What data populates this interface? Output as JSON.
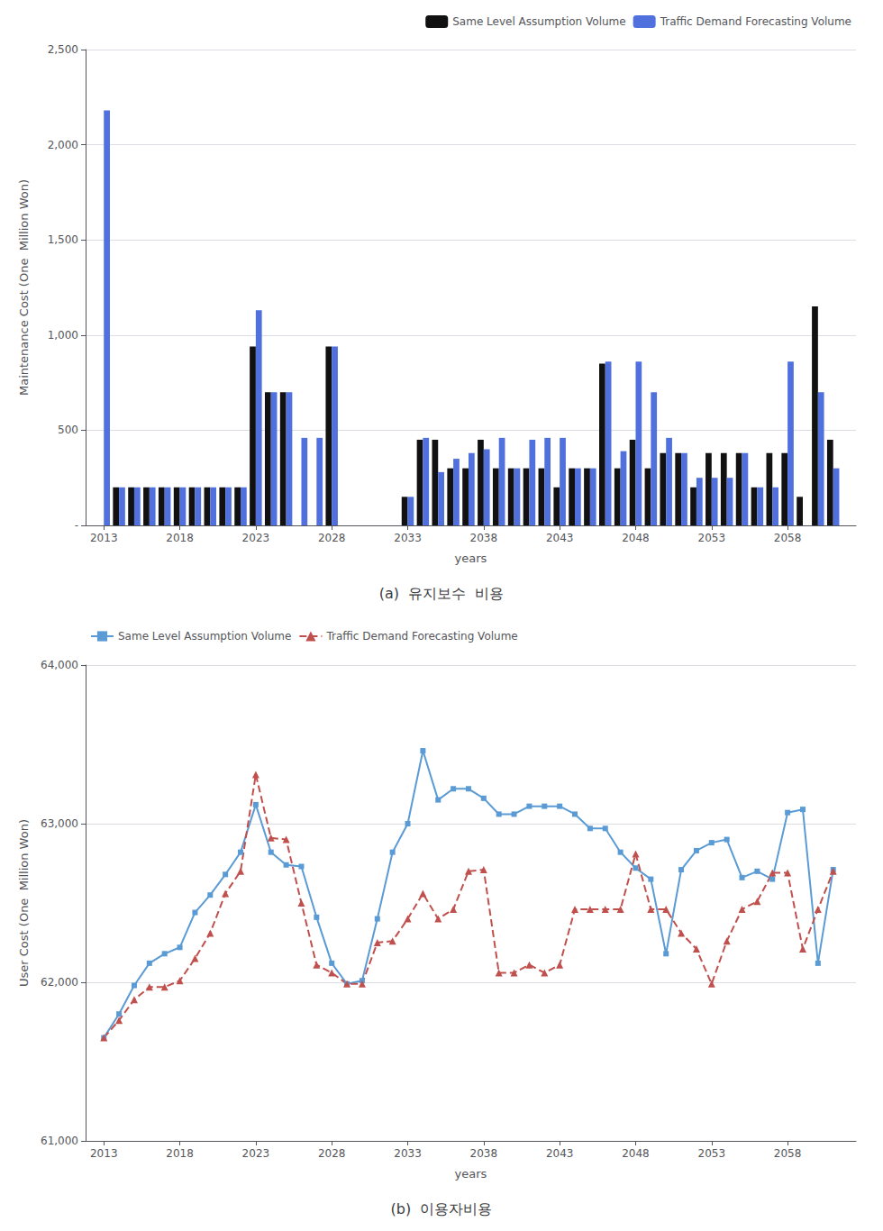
{
  "chart_data": [
    {
      "type": "bar",
      "title": "(a)  유지보수  비용",
      "xlabel": "years",
      "ylabel": "Maintenance Cost (One  Million Won)",
      "x": [
        2013,
        2014,
        2015,
        2016,
        2017,
        2018,
        2019,
        2020,
        2021,
        2022,
        2023,
        2024,
        2025,
        2026,
        2027,
        2028,
        2029,
        2030,
        2031,
        2032,
        2033,
        2034,
        2035,
        2036,
        2037,
        2038,
        2039,
        2040,
        2041,
        2042,
        2043,
        2044,
        2045,
        2046,
        2047,
        2048,
        2049,
        2050,
        2051,
        2052,
        2053,
        2054,
        2055,
        2056,
        2057,
        2058,
        2059,
        2060,
        2061
      ],
      "series": [
        {
          "name": "Same Level Assumption Volume",
          "color": "#111111",
          "values": [
            0,
            200,
            200,
            200,
            200,
            200,
            200,
            200,
            200,
            200,
            940,
            700,
            700,
            0,
            0,
            940,
            0,
            0,
            0,
            0,
            150,
            450,
            450,
            300,
            300,
            450,
            300,
            300,
            300,
            300,
            200,
            300,
            300,
            850,
            300,
            450,
            300,
            380,
            380,
            200,
            380,
            380,
            380,
            200,
            380,
            380,
            150,
            1150,
            450
          ]
        },
        {
          "name": "Traffic Demand Forecasting Volume",
          "values": [
            2180,
            200,
            200,
            200,
            200,
            200,
            200,
            200,
            200,
            200,
            1130,
            700,
            700,
            460,
            460,
            940,
            0,
            0,
            0,
            0,
            150,
            460,
            280,
            350,
            380,
            400,
            460,
            300,
            450,
            460,
            460,
            300,
            300,
            860,
            390,
            860,
            700,
            460,
            380,
            250,
            250,
            250,
            380,
            200,
            200,
            860,
            0,
            700,
            300
          ]
        }
      ],
      "xlim": [
        2011.8,
        2062.5
      ],
      "xticks": [
        2013,
        2018,
        2023,
        2028,
        2033,
        2038,
        2043,
        2048,
        2053,
        2058
      ],
      "ylim": [
        0,
        2500
      ],
      "yticks": [
        {
          "value": 0,
          "label": "-"
        },
        500,
        {
          "value": 1000,
          "label": "1,000"
        },
        {
          "value": 1500,
          "label": "1,500"
        },
        {
          "value": 2000,
          "label": "2,000"
        },
        {
          "value": 2500,
          "label": "2,500"
        }
      ],
      "grid": true,
      "legend": "upper right"
    },
    {
      "type": "line",
      "title": "(b)  이용자비용",
      "xlabel": "years",
      "ylabel": "User Cost (One  Million Won)",
      "x": [
        2013,
        2014,
        2015,
        2016,
        2017,
        2018,
        2019,
        2020,
        2021,
        2022,
        2023,
        2024,
        2025,
        2026,
        2027,
        2028,
        2029,
        2030,
        2031,
        2032,
        2033,
        2034,
        2035,
        2036,
        2037,
        2038,
        2039,
        2040,
        2041,
        2042,
        2043,
        2044,
        2045,
        2046,
        2047,
        2048,
        2049,
        2050,
        2051,
        2052,
        2053,
        2054,
        2055,
        2056,
        2057,
        2058,
        2059,
        2060,
        2061
      ],
      "series": [
        {
          "name": "Same Level Assumption Volume",
          "color": "#5b9bd5",
          "marker": "square",
          "line_style": "solid",
          "values": [
            61650,
            61800,
            61980,
            62120,
            62180,
            62220,
            62440,
            62550,
            62680,
            62820,
            63120,
            62820,
            62740,
            62730,
            62410,
            62120,
            61990,
            62010,
            62400,
            62820,
            63000,
            63460,
            63150,
            63220,
            63220,
            63160,
            63060,
            63060,
            63110,
            63110,
            63110,
            63060,
            62970,
            62970,
            62820,
            62720,
            62650,
            62180,
            62710,
            62830,
            62880,
            62900,
            62660,
            62700,
            62650,
            63070,
            63090,
            62120,
            62710
          ]
        },
        {
          "name": "Traffic Demand Forecasting Volume",
          "color": "#c0504d",
          "marker": "triangle",
          "line_style": "dashed",
          "values": [
            61650,
            61760,
            61890,
            61970,
            61970,
            62010,
            62150,
            62310,
            62560,
            62700,
            63310,
            62910,
            62900,
            62500,
            62110,
            62060,
            61990,
            61990,
            62250,
            62260,
            62400,
            62560,
            62400,
            62460,
            62700,
            62710,
            62060,
            62060,
            62110,
            62060,
            62110,
            62460,
            62460,
            62460,
            62460,
            62810,
            62460,
            62460,
            62310,
            62210,
            61990,
            62260,
            62460,
            62510,
            62690,
            62690,
            62210,
            62460,
            62700
          ]
        }
      ],
      "xlim": [
        2011.8,
        2062.5
      ],
      "xticks": [
        2013,
        2018,
        2023,
        2028,
        2033,
        2038,
        2043,
        2048,
        2053,
        2058
      ],
      "ylim": [
        61000,
        64000
      ],
      "yticks": [
        {
          "value": 61000,
          "label": "61,000"
        },
        {
          "value": 62000,
          "label": "62,000"
        },
        {
          "value": 63000,
          "label": "63,000"
        },
        {
          "value": 64000,
          "label": "64,000"
        }
      ],
      "grid": true,
      "legend": "upper left"
    }
  ]
}
